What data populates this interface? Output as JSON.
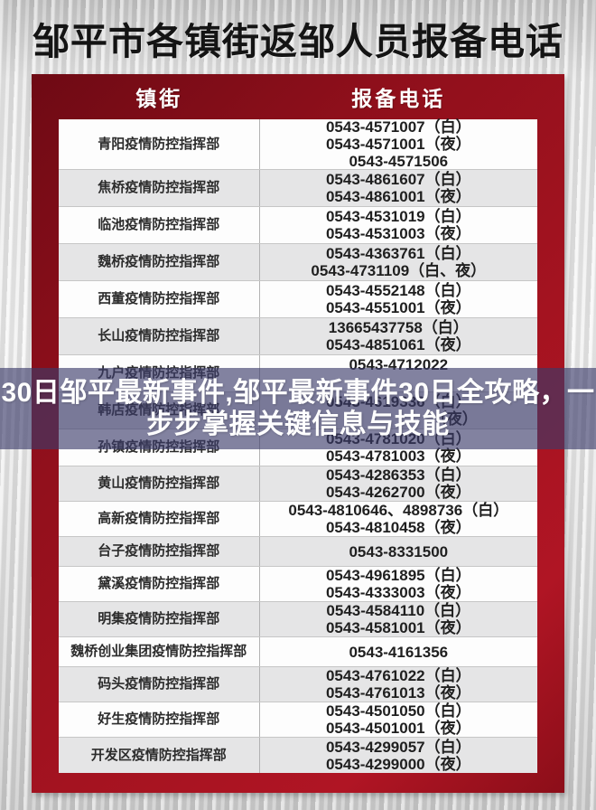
{
  "page": {
    "title": "邹平市各镇街返邹人员报备电话"
  },
  "table": {
    "headers": {
      "town": "镇街",
      "phone": "报备电话"
    },
    "rows": [
      {
        "town": "青阳疫情防控指挥部",
        "phones": [
          "0543-4571007（白）",
          "0543-4571001（夜）",
          "0543-4571506"
        ]
      },
      {
        "town": "焦桥疫情防控指挥部",
        "phones": [
          "0543-4861607（白）",
          "0543-4861001（夜）"
        ]
      },
      {
        "town": "临池疫情防控指挥部",
        "phones": [
          "0543-4531019（白）",
          "0543-4531003（夜）"
        ]
      },
      {
        "town": "魏桥疫情防控指挥部",
        "phones": [
          "0543-4363761（白）",
          "0543-4731109（白、夜）"
        ]
      },
      {
        "town": "西董疫情防控指挥部",
        "phones": [
          "0543-4552148（白）",
          "0543-4551001（夜）"
        ]
      },
      {
        "town": "长山疫情防控指挥部",
        "phones": [
          "13665437758（白）",
          "0543-4851061（夜）"
        ]
      },
      {
        "town": "九户疫情防控指挥部",
        "phones": [
          "0543-4712022"
        ]
      },
      {
        "town": "韩店疫情防控指挥部",
        "phones": [
          "0543-4619336（白）",
          "（夜）"
        ]
      },
      {
        "town": "孙镇疫情防控指挥部",
        "phones": [
          "0543-4781020（白）",
          "0543-4781003（夜）"
        ]
      },
      {
        "town": "黄山疫情防控指挥部",
        "phones": [
          "0543-4286353（白）",
          "0543-4262700（夜）"
        ]
      },
      {
        "town": "高新疫情防控指挥部",
        "phones": [
          "0543-4810646、4898736（白）",
          "0543-4810458（夜）"
        ]
      },
      {
        "town": "台子疫情防控指挥部",
        "phones": [
          "0543-8331500"
        ]
      },
      {
        "town": "黛溪疫情防控指挥部",
        "phones": [
          "0543-4961895（白）",
          "0543-4333003（夜）"
        ]
      },
      {
        "town": "明集疫情防控指挥部",
        "phones": [
          "0543-4584110（白）",
          "0543-4581001（夜）"
        ]
      },
      {
        "town": "魏桥创业集团疫情防控指挥部",
        "phones": [
          "0543-4161356"
        ]
      },
      {
        "town": "码头疫情防控指挥部",
        "phones": [
          "0543-4761022（白）",
          "0543-4761013（夜）"
        ]
      },
      {
        "town": "好生疫情防控指挥部",
        "phones": [
          "0543-4501050（白）",
          "0543-4501001（夜）"
        ]
      },
      {
        "town": "开发区疫情防控指挥部",
        "phones": [
          "0543-4299057（白）",
          "0543-4299000（夜）"
        ]
      }
    ]
  },
  "overlay": {
    "line1": "30日邹平最新事件,邹平最新事件30日全攻略，一",
    "line2": "步步掌握关键信息与技能"
  },
  "colors": {
    "frame_red_dark": "#6e0a14",
    "frame_red": "#a41320",
    "row_alt_gray": "#e5e5e6",
    "overlay_purple": "rgba(59,59,106,0.63)",
    "title_black": "#141414"
  }
}
